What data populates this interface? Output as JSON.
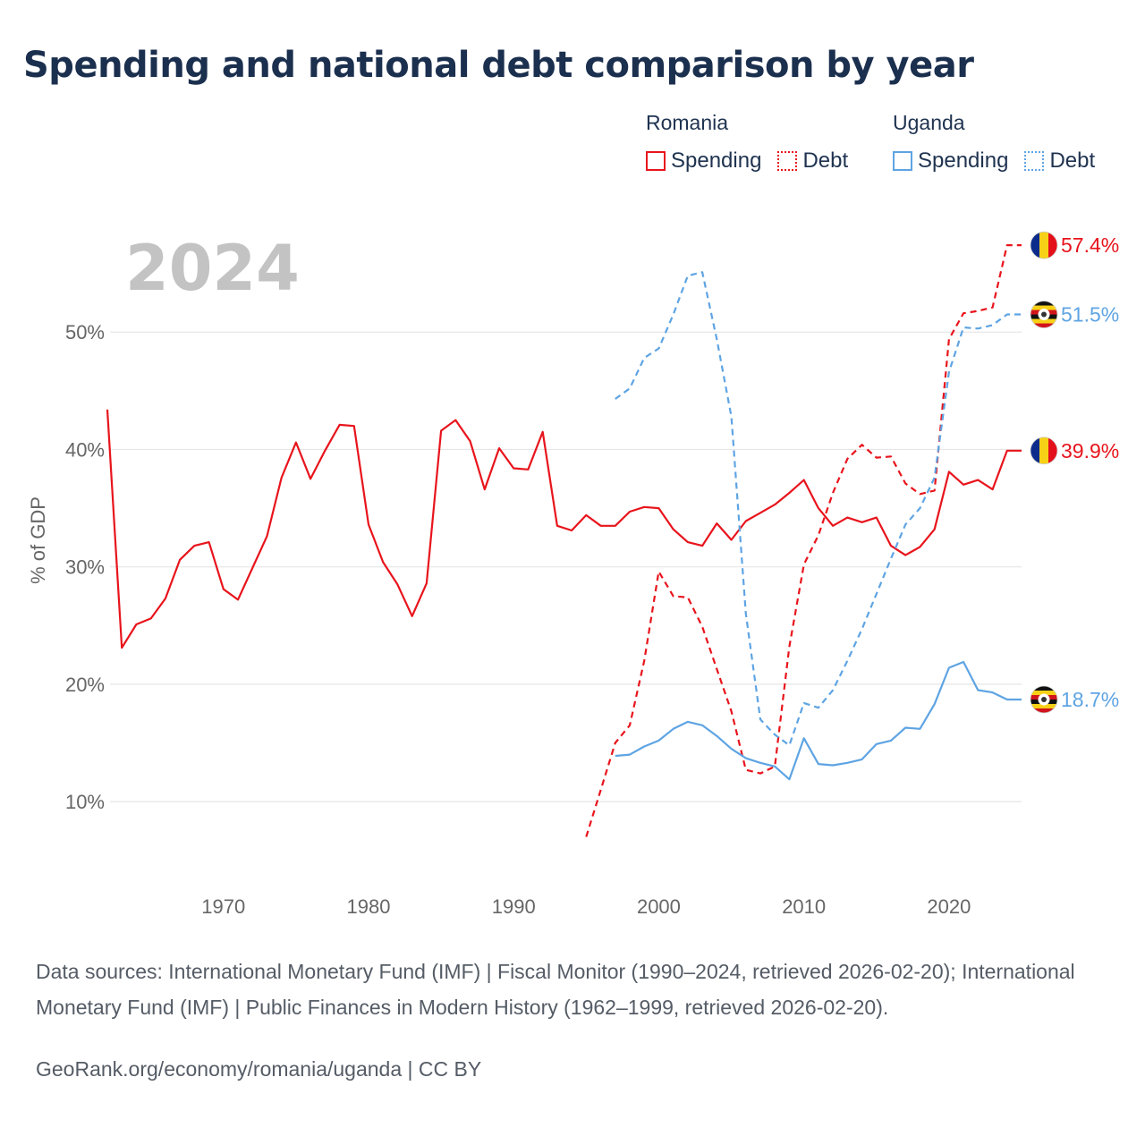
{
  "title": "Spending and national debt comparison by year",
  "legend": {
    "groups": [
      {
        "country": "Romania",
        "color": "#e8141c",
        "items": [
          {
            "label": "Spending",
            "style": "solid"
          },
          {
            "label": "Debt",
            "style": "dotted"
          }
        ]
      },
      {
        "country": "Uganda",
        "color": "#5ea4e3",
        "items": [
          {
            "label": "Spending",
            "style": "solid"
          },
          {
            "label": "Debt",
            "style": "dotted"
          }
        ]
      }
    ]
  },
  "year_watermark": "2024",
  "source_text": "Data sources: International Monetary Fund (IMF) | Fiscal Monitor (1990–2024, retrieved 2026-02-20); International Monetary Fund (IMF) | Public Finances in Modern History (1962–1999, retrieved 2026-02-20).",
  "credit_text": "GeoRank.org/economy/romania/uganda | CC BY",
  "chart_data": {
    "type": "line",
    "title": "Spending and national debt comparison by year",
    "xlabel": "",
    "ylabel": "% of GDP",
    "xlim": [
      1962,
      2025
    ],
    "ylim": [
      3,
      60
    ],
    "x_ticks": [
      1970,
      1980,
      1990,
      2000,
      2010,
      2020
    ],
    "y_ticks": [
      10,
      20,
      30,
      40,
      50
    ],
    "y_tick_labels": [
      "10%",
      "20%",
      "30%",
      "40%",
      "50%"
    ],
    "grid": true,
    "series": [
      {
        "name": "Romania Spending",
        "country": "Romania",
        "measure": "Spending",
        "color": "#e8141c",
        "dash": "solid",
        "flag": "romania",
        "end_label": "39.9%",
        "x": [
          1962,
          1963,
          1964,
          1965,
          1966,
          1967,
          1968,
          1969,
          1970,
          1971,
          1972,
          1973,
          1974,
          1975,
          1976,
          1977,
          1978,
          1979,
          1980,
          1981,
          1982,
          1983,
          1984,
          1985,
          1986,
          1987,
          1988,
          1989,
          1990,
          1991,
          1992,
          1993,
          1994,
          1995,
          1996,
          1997,
          1998,
          1999,
          2000,
          2001,
          2002,
          2003,
          2004,
          2005,
          2006,
          2007,
          2008,
          2009,
          2010,
          2011,
          2012,
          2013,
          2014,
          2015,
          2016,
          2017,
          2018,
          2019,
          2020,
          2021,
          2022,
          2023,
          2024,
          2025
        ],
        "values": [
          43.4,
          23.1,
          25.1,
          25.6,
          27.3,
          30.6,
          31.8,
          32.1,
          28.1,
          27.2,
          29.9,
          32.6,
          37.6,
          40.6,
          37.5,
          39.9,
          42.1,
          42.0,
          33.6,
          30.4,
          28.5,
          25.8,
          28.6,
          41.6,
          42.5,
          40.7,
          36.6,
          40.1,
          38.4,
          38.3,
          41.5,
          33.5,
          33.1,
          34.4,
          33.5,
          33.5,
          34.7,
          35.1,
          35.0,
          33.2,
          32.1,
          31.8,
          33.7,
          32.3,
          33.9,
          34.6,
          35.3,
          36.3,
          37.4,
          35.0,
          33.5,
          34.2,
          33.8,
          34.2,
          31.8,
          31.0,
          31.7,
          33.2,
          38.1,
          37.0,
          37.4,
          36.6,
          39.9,
          39.9
        ]
      },
      {
        "name": "Romania Debt",
        "country": "Romania",
        "measure": "Debt",
        "color": "#e8141c",
        "dash": "dashed",
        "flag": "romania",
        "end_label": "57.4%",
        "x": [
          1995,
          1996,
          1997,
          1998,
          1999,
          2000,
          2001,
          2002,
          2003,
          2004,
          2005,
          2006,
          2007,
          2008,
          2009,
          2010,
          2011,
          2012,
          2013,
          2014,
          2015,
          2016,
          2017,
          2018,
          2019,
          2020,
          2021,
          2022,
          2023,
          2024,
          2025
        ],
        "values": [
          7.0,
          11.0,
          15.0,
          16.5,
          22.0,
          29.6,
          27.5,
          27.4,
          24.9,
          21.3,
          17.7,
          12.7,
          12.4,
          13.0,
          23.2,
          30.2,
          32.7,
          36.3,
          39.2,
          40.4,
          39.3,
          39.4,
          37.1,
          36.2,
          36.5,
          49.4,
          51.6,
          51.8,
          52.1,
          57.4,
          57.4
        ]
      },
      {
        "name": "Uganda Spending",
        "country": "Uganda",
        "measure": "Spending",
        "color": "#5ea4e3",
        "dash": "solid",
        "flag": "uganda",
        "end_label": "18.7%",
        "x": [
          1997,
          1998,
          1999,
          2000,
          2001,
          2002,
          2003,
          2004,
          2005,
          2006,
          2007,
          2008,
          2009,
          2010,
          2011,
          2012,
          2013,
          2014,
          2015,
          2016,
          2017,
          2018,
          2019,
          2020,
          2021,
          2022,
          2023,
          2024,
          2025
        ],
        "values": [
          13.9,
          14.0,
          14.7,
          15.2,
          16.2,
          16.8,
          16.5,
          15.6,
          14.5,
          13.7,
          13.3,
          13.0,
          11.9,
          15.4,
          13.2,
          13.1,
          13.3,
          13.6,
          14.9,
          15.2,
          16.3,
          16.2,
          18.3,
          21.4,
          21.9,
          19.5,
          19.3,
          18.7,
          18.7
        ]
      },
      {
        "name": "Uganda Debt",
        "country": "Uganda",
        "measure": "Debt",
        "color": "#5ea4e3",
        "dash": "dashed",
        "flag": "uganda",
        "end_label": "51.5%",
        "x": [
          1997,
          1998,
          1999,
          2000,
          2001,
          2002,
          2003,
          2004,
          2005,
          2006,
          2007,
          2008,
          2009,
          2010,
          2011,
          2012,
          2013,
          2014,
          2015,
          2016,
          2017,
          2018,
          2019,
          2020,
          2021,
          2022,
          2023,
          2024,
          2025
        ],
        "values": [
          44.3,
          45.2,
          47.8,
          48.6,
          51.5,
          54.8,
          55.1,
          49.4,
          42.8,
          26.0,
          17.0,
          15.7,
          14.8,
          18.4,
          18.0,
          19.5,
          22.0,
          24.7,
          27.7,
          30.7,
          33.6,
          35.0,
          37.6,
          46.6,
          50.4,
          50.3,
          50.6,
          51.5,
          51.5
        ]
      }
    ]
  }
}
